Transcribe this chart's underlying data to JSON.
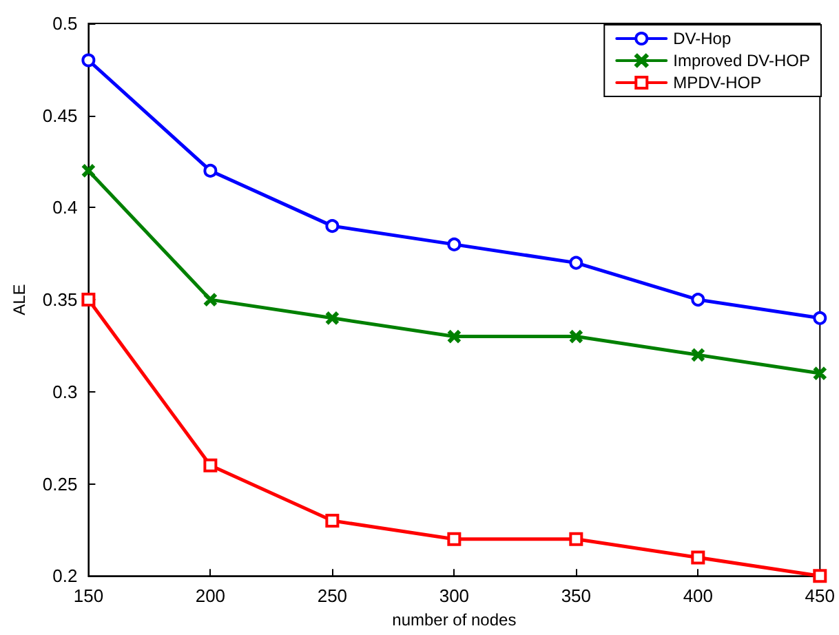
{
  "chart_data": {
    "type": "line",
    "xlabel": "number of nodes",
    "ylabel": "ALE",
    "x": [
      150,
      200,
      250,
      300,
      350,
      400,
      450
    ],
    "xlim": [
      150,
      450
    ],
    "xticks": [
      150,
      200,
      250,
      300,
      350,
      400,
      450
    ],
    "ylim": [
      0.2,
      0.5
    ],
    "yticks": [
      0.2,
      0.25,
      0.3,
      0.35,
      0.4,
      0.45,
      0.5
    ],
    "grid": false,
    "legend": "top right",
    "line_style": "solid",
    "series": [
      {
        "name": "DV-Hop",
        "color": "#0000ff",
        "marker": "circle",
        "values": [
          0.48,
          0.42,
          0.39,
          0.38,
          0.37,
          0.35,
          0.34
        ]
      },
      {
        "name": "Improved DV-HOP",
        "color": "#008000",
        "marker": "cross",
        "values": [
          0.42,
          0.35,
          0.34,
          0.33,
          0.33,
          0.32,
          0.31
        ]
      },
      {
        "name": "MPDV-HOP",
        "color": "#ff0000",
        "marker": "square",
        "values": [
          0.35,
          0.26,
          0.23,
          0.22,
          0.22,
          0.21,
          0.2
        ]
      }
    ]
  }
}
